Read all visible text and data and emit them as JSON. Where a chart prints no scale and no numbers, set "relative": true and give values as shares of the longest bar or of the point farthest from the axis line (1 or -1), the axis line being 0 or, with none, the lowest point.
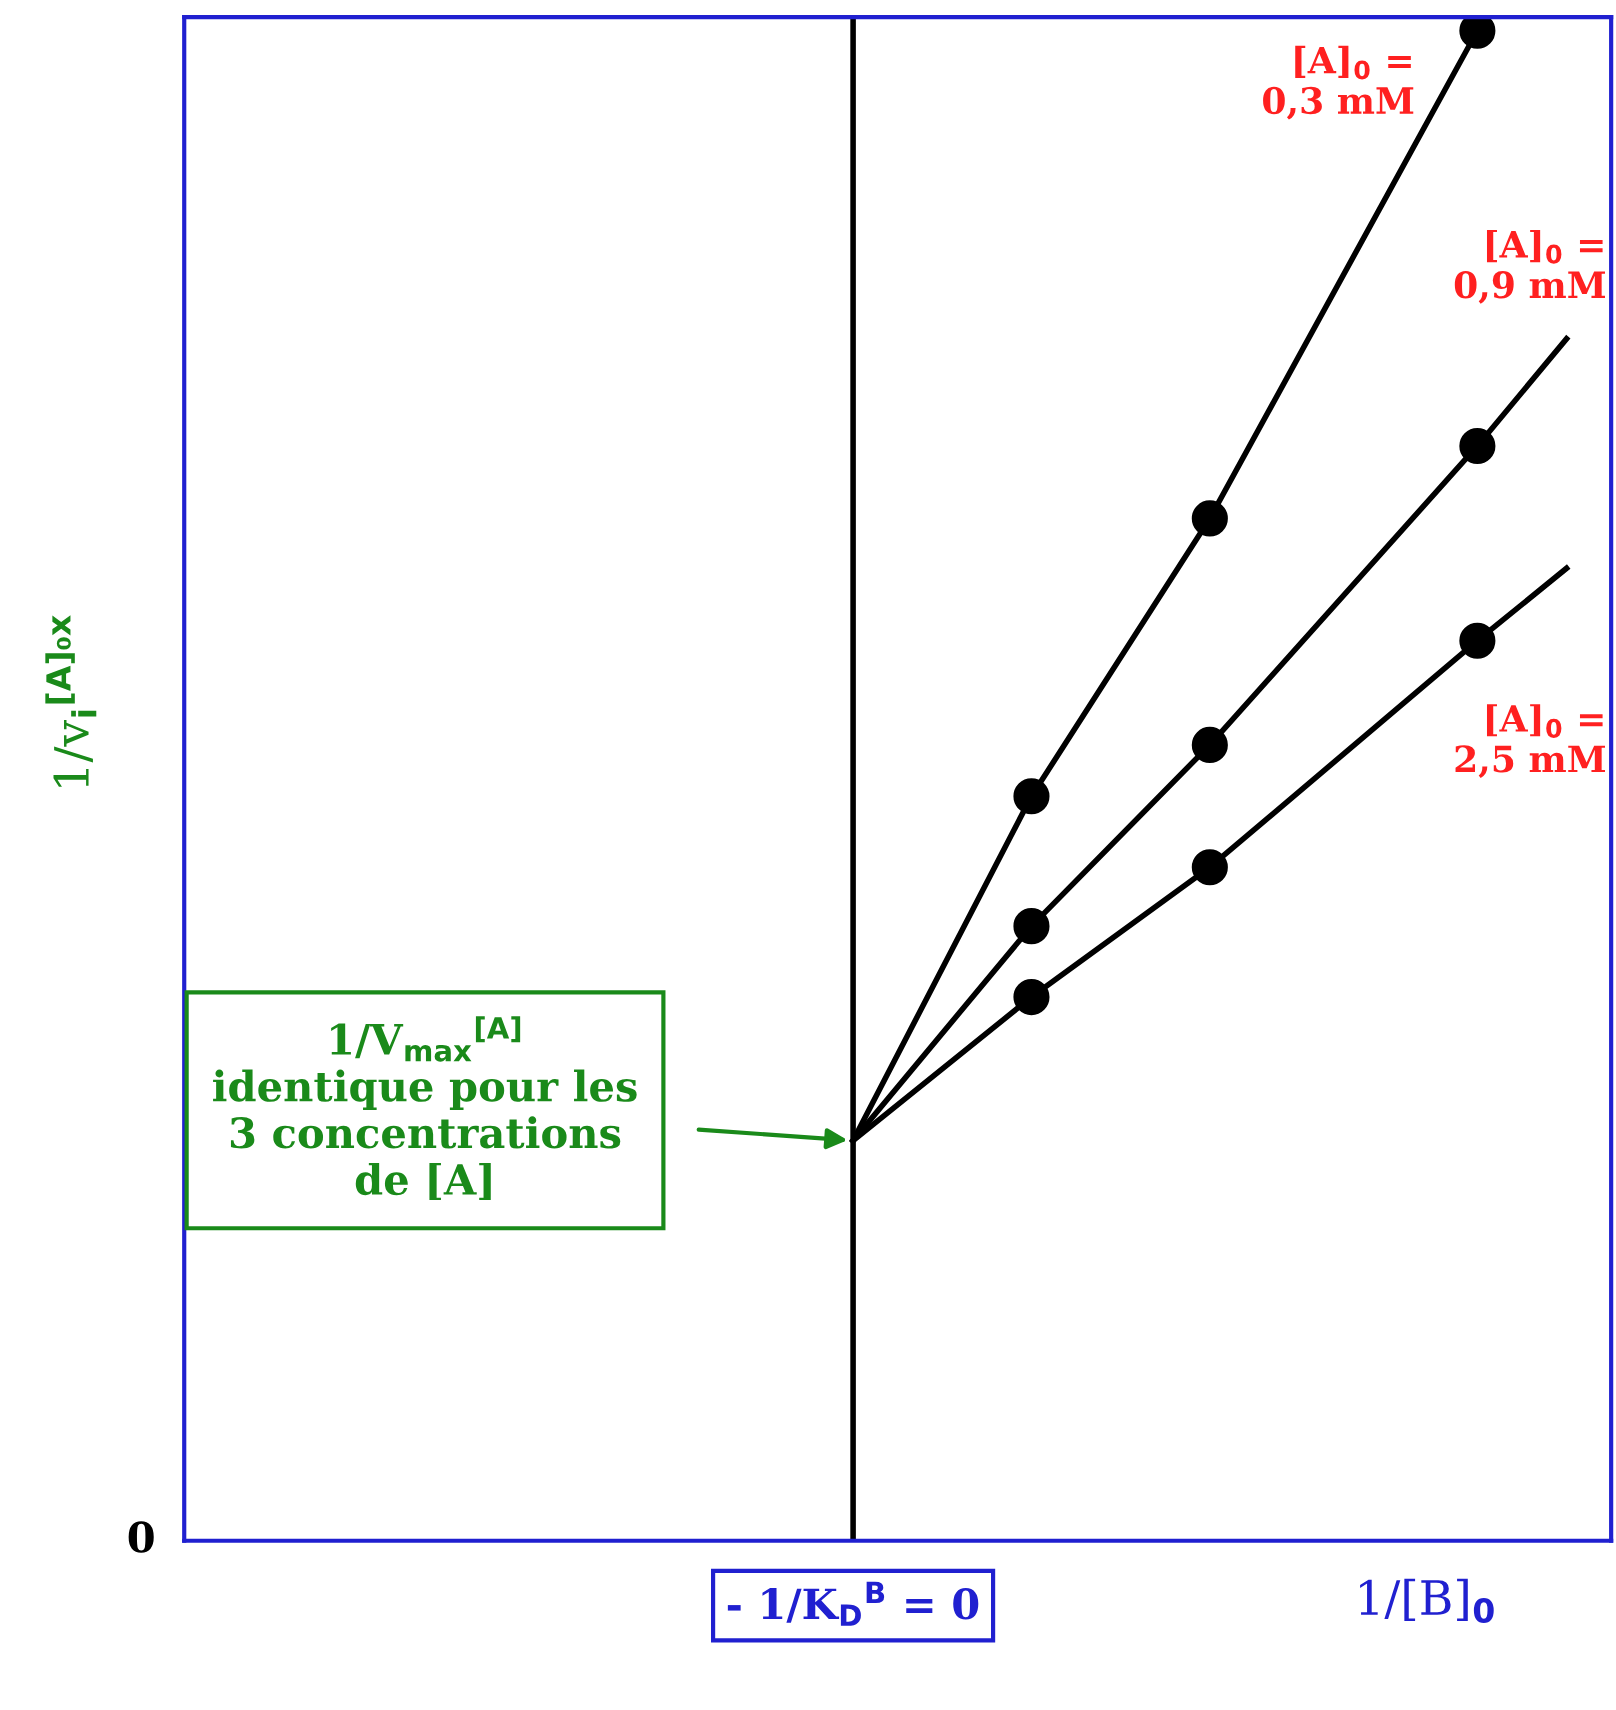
{
  "chart_data": {
    "type": "line",
    "relative": true,
    "marker": "circle",
    "xlabel": "1/[B]$_{0}$",
    "ylabel": "1/v$_{i}$$^{[A]₀x}$",
    "categories": [
      null,
      null,
      null,
      null,
      null,
      null,
      null,
      null,
      null,
      null,
      null,
      null,
      null,
      null,
      null,
      null
    ],
    "series": [
      {
        "name": "[A]$_{0}$ =\n0,3 mM",
        "color": "#000000",
        "values": [
          null,
          null,
          null,
          null,
          null,
          null,
          null,
          0.265,
          null,
          0.493,
          null,
          0.677,
          null,
          null,
          1,
          null
        ]
      },
      {
        "name": "[A]$_{0}$ =\n0,9 mM",
        "color": "#000000",
        "values": [
          null,
          null,
          null,
          null,
          null,
          null,
          null,
          0.265,
          null,
          0.407,
          null,
          0.527,
          null,
          null,
          0.725,
          0.796
        ]
      },
      {
        "name": "[A]$_{0}$ =\n2,5 mM",
        "color": "#000000",
        "values": [
          null,
          null,
          null,
          null,
          null,
          null,
          null,
          0.265,
          null,
          0.36,
          null,
          0.446,
          null,
          null,
          0.596,
          0.644
        ]
      }
    ],
    "ref_lines": [
      {
        "axis": "x",
        "label": "- 1/K$_{D}$$^{B}$ = 0",
        "color": "#000000"
      }
    ],
    "annotations": [
      "0",
      "1/V$_{max}$$^{[A]}$\nidentique pour les\n3 concentrations\nde [A]"
    ]
  }
}
